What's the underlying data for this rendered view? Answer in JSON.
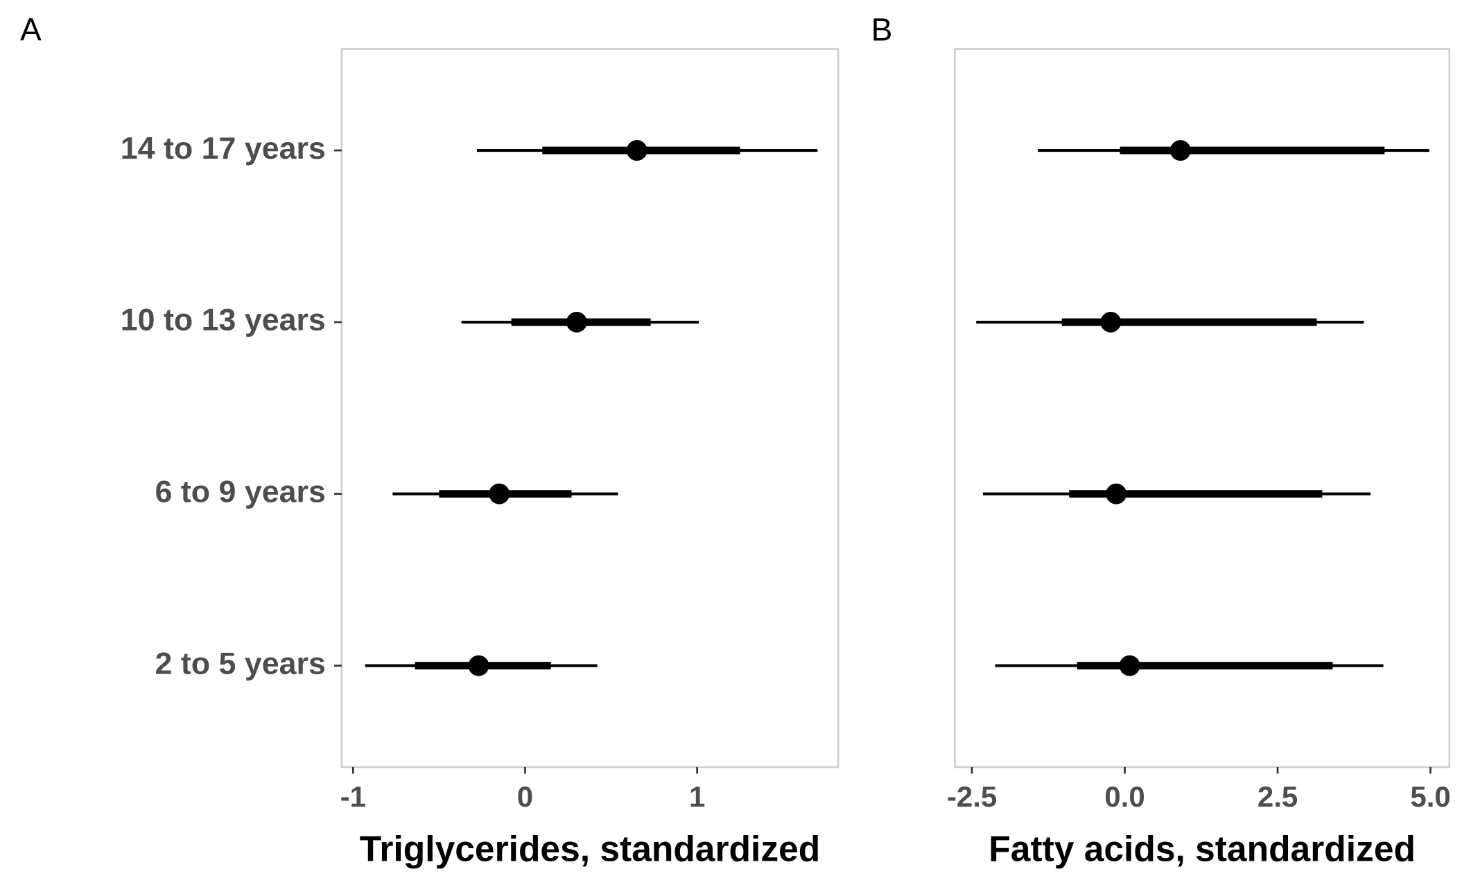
{
  "chart_data": [
    {
      "type": "interval",
      "panel_label": "A",
      "xlabel": "Triglycerides, standardized",
      "categories": [
        "14 to 17 years",
        "10 to 13 years",
        "6 to 9 years",
        "2 to 5 years"
      ],
      "values": [
        0.65,
        0.3,
        -0.15,
        -0.27
      ],
      "lower_inner": [
        0.1,
        -0.08,
        -0.5,
        -0.64
      ],
      "upper_inner": [
        1.25,
        0.73,
        0.27,
        0.15
      ],
      "lower_outer": [
        -0.28,
        -0.37,
        -0.77,
        -0.93
      ],
      "upper_outer": [
        1.7,
        1.01,
        0.54,
        0.42
      ],
      "color": "#000000",
      "xlim": [
        -1.066,
        1.82
      ],
      "xticks": [
        -1,
        0,
        1
      ]
    },
    {
      "type": "interval",
      "panel_label": "B",
      "xlabel": "Fatty acids, standardized",
      "values": [
        0.91,
        -0.23,
        -0.14,
        0.08
      ],
      "lower_inner": [
        -0.08,
        -1.03,
        -0.91,
        -0.78
      ],
      "upper_inner": [
        4.25,
        3.14,
        3.23,
        3.4
      ],
      "lower_outer": [
        -1.42,
        -2.43,
        -2.32,
        -2.12
      ],
      "upper_outer": [
        4.98,
        3.91,
        4.02,
        4.23
      ],
      "color": "#000000",
      "xlim": [
        -2.78,
        5.31
      ],
      "xticks": [
        -2.5,
        {
          "value": 0,
          "label": "0.0"
        },
        2.5,
        {
          "value": 5,
          "label": "5.0"
        }
      ]
    }
  ]
}
